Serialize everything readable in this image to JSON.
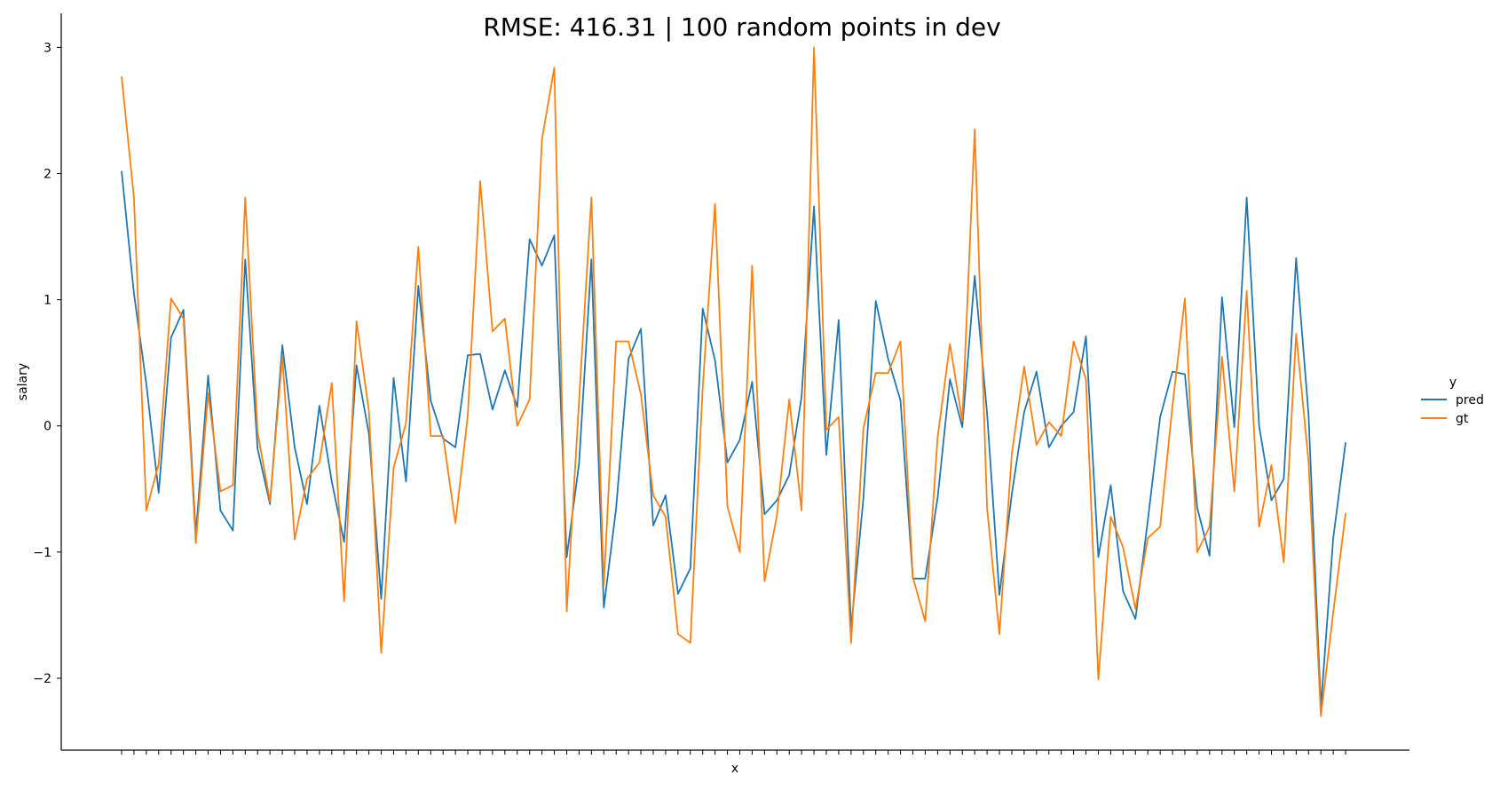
{
  "chart_data": {
    "type": "line",
    "title": "RMSE: 416.31 | 100 random points in dev",
    "xlabel": "x",
    "ylabel": "salary",
    "ylim": [
      -2.57,
      3.27
    ],
    "yticks": [
      -2,
      -1,
      0,
      1,
      2,
      3
    ],
    "ytick_labels": [
      "−2",
      "−1",
      "0",
      "1",
      "2",
      "3"
    ],
    "x_categories_count": 100,
    "x_tick_labels_shown": false,
    "grid": false,
    "legend": {
      "title": "y",
      "placement": "right"
    },
    "series": [
      {
        "name": "pred",
        "color": "#1f77b4",
        "values": [
          2.02,
          1.05,
          0.33,
          -0.53,
          0.7,
          0.92,
          -0.86,
          0.4,
          -0.67,
          -0.83,
          1.32,
          -0.18,
          -0.62,
          0.64,
          -0.17,
          -0.62,
          0.16,
          -0.44,
          -0.92,
          0.48,
          -0.06,
          -1.37,
          0.38,
          -0.44,
          1.11,
          0.2,
          -0.1,
          -0.17,
          0.56,
          0.57,
          0.13,
          0.44,
          0.15,
          1.48,
          1.27,
          1.51,
          -1.04,
          -0.3,
          1.32,
          -1.44,
          -0.65,
          0.53,
          0.77,
          -0.79,
          -0.55,
          -1.33,
          -1.13,
          0.93,
          0.52,
          -0.29,
          -0.11,
          0.35,
          -0.7,
          -0.59,
          -0.39,
          0.23,
          1.74,
          -0.23,
          0.84,
          -1.61,
          -0.57,
          0.99,
          0.53,
          0.2,
          -1.21,
          -1.21,
          -0.57,
          0.37,
          -0.01,
          1.19,
          0.1,
          -1.34,
          -0.54,
          0.11,
          0.43,
          -0.17,
          0.0,
          0.11,
          0.71,
          -1.04,
          -0.47,
          -1.31,
          -1.53,
          -0.75,
          0.07,
          0.43,
          0.41,
          -0.65,
          -1.03,
          1.02,
          -0.01,
          1.81,
          0.0,
          -0.59,
          -0.42,
          1.33,
          0.09,
          -2.23,
          -0.89,
          -0.13
        ]
      },
      {
        "name": "gt",
        "color": "#ff7f0e",
        "values": [
          2.77,
          1.81,
          -0.67,
          -0.3,
          1.01,
          0.85,
          -0.93,
          0.26,
          -0.52,
          -0.47,
          1.81,
          -0.05,
          -0.6,
          0.55,
          -0.9,
          -0.42,
          -0.29,
          0.34,
          -1.39,
          0.83,
          0.12,
          -1.8,
          -0.33,
          0.02,
          1.42,
          -0.08,
          -0.08,
          -0.77,
          0.08,
          1.94,
          0.75,
          0.85,
          0.0,
          0.21,
          2.27,
          2.84,
          -1.47,
          0.2,
          1.81,
          -1.26,
          0.67,
          0.67,
          0.25,
          -0.55,
          -0.72,
          -1.65,
          -1.72,
          0.3,
          1.76,
          -0.64,
          -1.0,
          1.27,
          -1.23,
          -0.71,
          0.21,
          -0.67,
          3.0,
          -0.03,
          0.07,
          -1.72,
          -0.02,
          0.42,
          0.42,
          0.67,
          -1.2,
          -1.55,
          -0.09,
          0.65,
          0.04,
          2.35,
          -0.65,
          -1.65,
          -0.22,
          0.47,
          -0.15,
          0.03,
          -0.08,
          0.67,
          0.37,
          -2.01,
          -0.72,
          -0.96,
          -1.45,
          -0.89,
          -0.8,
          0.16,
          1.01,
          -1.0,
          -0.8,
          0.55,
          -0.52,
          1.07,
          -0.8,
          -0.31,
          -1.08,
          0.73,
          -0.28,
          -2.3,
          -1.48,
          -0.69
        ]
      }
    ]
  }
}
